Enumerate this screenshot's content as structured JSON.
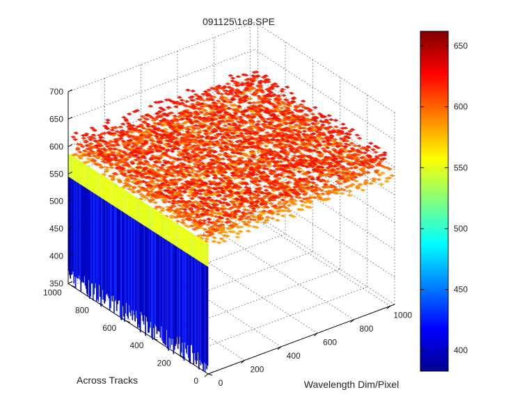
{
  "chart_data": {
    "type": "surface3d",
    "title": "091125\\1c8.SPE",
    "xlabel": "Wavelength Dim/Pixel",
    "ylabel": "Across Tracks",
    "zlabel": "",
    "x_ticks": [
      "0",
      "200",
      "400",
      "600",
      "800",
      "1000"
    ],
    "y_ticks": [
      "0",
      "200",
      "400",
      "600",
      "800",
      "1000"
    ],
    "z_ticks": [
      "350",
      "400",
      "450",
      "500",
      "550",
      "600",
      "650",
      "700"
    ],
    "xlim": [
      0,
      1024
    ],
    "ylim": [
      0,
      1024
    ],
    "zlim": [
      350,
      700
    ],
    "colorbar": {
      "ticks": [
        "400",
        "450",
        "500",
        "550",
        "600",
        "650"
      ],
      "range": [
        383,
        662
      ],
      "colormap": "jet"
    },
    "surface": {
      "plateau_mean": 600,
      "plateau_noise": 30,
      "front_edge_drop_to": 395,
      "edge_band_value": 550,
      "grid": "on"
    }
  }
}
